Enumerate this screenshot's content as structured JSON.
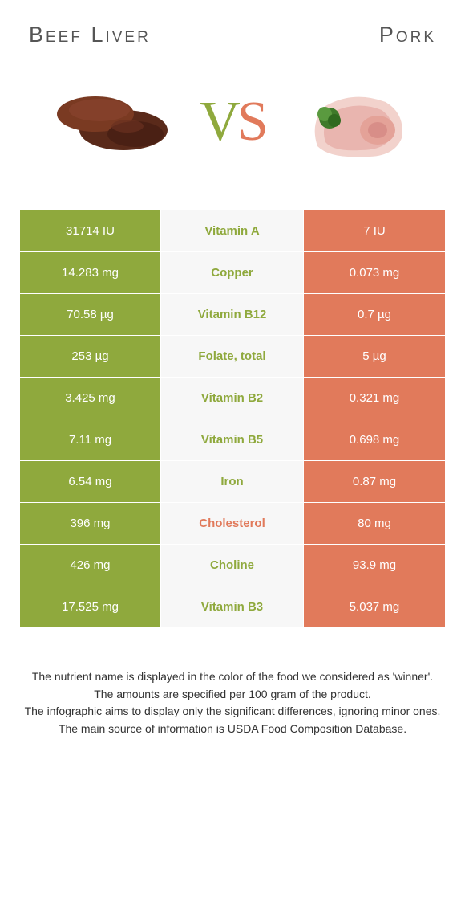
{
  "header": {
    "left": "Beef Liver",
    "right": "Pork"
  },
  "vs": {
    "v": "V",
    "s": "S"
  },
  "colors": {
    "green": "#8fa93d",
    "orange": "#e17a5b",
    "lightbg": "#f7f7f7",
    "white": "#ffffff",
    "liver_dark": "#5a2a1a",
    "liver_mid": "#7a3a22",
    "pork_light": "#f2d2cc",
    "pork_mid": "#e9b5af",
    "pork_dark": "#d88e88",
    "pork_meat": "#e4a298",
    "herb": "#3f7a2a"
  },
  "rows": [
    {
      "left": "31714 IU",
      "label": "Vitamin A",
      "winner": "green",
      "right": "7 IU"
    },
    {
      "left": "14.283 mg",
      "label": "Copper",
      "winner": "green",
      "right": "0.073 mg"
    },
    {
      "left": "70.58 µg",
      "label": "Vitamin B12",
      "winner": "green",
      "right": "0.7 µg"
    },
    {
      "left": "253 µg",
      "label": "Folate, total",
      "winner": "green",
      "right": "5 µg"
    },
    {
      "left": "3.425 mg",
      "label": "Vitamin B2",
      "winner": "green",
      "right": "0.321 mg"
    },
    {
      "left": "7.11 mg",
      "label": "Vitamin B5",
      "winner": "green",
      "right": "0.698 mg"
    },
    {
      "left": "6.54 mg",
      "label": "Iron",
      "winner": "green",
      "right": "0.87 mg"
    },
    {
      "left": "396 mg",
      "label": "Cholesterol",
      "winner": "orange",
      "right": "80 mg"
    },
    {
      "left": "426 mg",
      "label": "Choline",
      "winner": "green",
      "right": "93.9 mg"
    },
    {
      "left": "17.525 mg",
      "label": "Vitamin B3",
      "winner": "green",
      "right": "5.037 mg"
    }
  ],
  "footer": {
    "line1": "The nutrient name is displayed in the color of the food we considered as 'winner'.",
    "line2": "The amounts are specified per 100 gram of the product.",
    "line3": "The infographic aims to display only the significant differences, ignoring minor ones.",
    "line4": "The main source of information is USDA Food Composition Database."
  }
}
